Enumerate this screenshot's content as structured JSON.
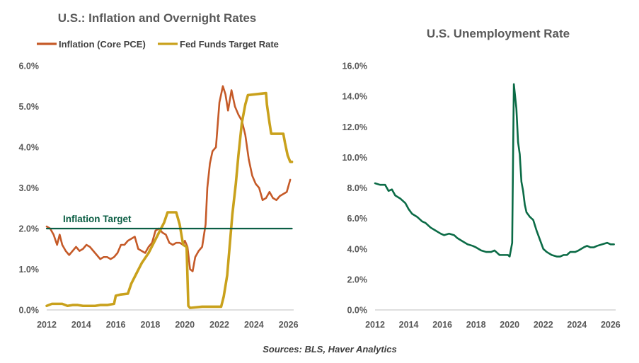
{
  "chart_data": [
    {
      "type": "line",
      "title": "U.S.: Inflation and Overnight Rates",
      "xlim": [
        2012,
        2026.3
      ],
      "ylim": [
        0,
        6
      ],
      "x_ticks": [
        "2012",
        "2014",
        "2016",
        "2018",
        "2020",
        "2022",
        "2024",
        "2026"
      ],
      "y_ticks": [
        "0.0%",
        "1.0%",
        "2.0%",
        "3.0%",
        "4.0%",
        "5.0%",
        "6.0%"
      ],
      "grid": false,
      "legend": "top",
      "annotation": {
        "text": "Inflation Target",
        "y": 2.0
      },
      "series": [
        {
          "name": "Inflation (Core PCE)",
          "color": "#c55a28",
          "points": [
            [
              2012.0,
              2.05
            ],
            [
              2012.2,
              2.0
            ],
            [
              2012.4,
              1.85
            ],
            [
              2012.6,
              1.6
            ],
            [
              2012.75,
              1.85
            ],
            [
              2012.9,
              1.6
            ],
            [
              2013.1,
              1.45
            ],
            [
              2013.3,
              1.35
            ],
            [
              2013.5,
              1.45
            ],
            [
              2013.7,
              1.55
            ],
            [
              2013.9,
              1.45
            ],
            [
              2014.1,
              1.5
            ],
            [
              2014.3,
              1.6
            ],
            [
              2014.5,
              1.55
            ],
            [
              2014.7,
              1.45
            ],
            [
              2014.9,
              1.35
            ],
            [
              2015.1,
              1.25
            ],
            [
              2015.3,
              1.3
            ],
            [
              2015.5,
              1.3
            ],
            [
              2015.7,
              1.25
            ],
            [
              2015.9,
              1.3
            ],
            [
              2016.1,
              1.4
            ],
            [
              2016.3,
              1.6
            ],
            [
              2016.5,
              1.6
            ],
            [
              2016.7,
              1.7
            ],
            [
              2016.9,
              1.75
            ],
            [
              2017.1,
              1.8
            ],
            [
              2017.3,
              1.5
            ],
            [
              2017.5,
              1.45
            ],
            [
              2017.7,
              1.4
            ],
            [
              2017.9,
              1.55
            ],
            [
              2018.1,
              1.65
            ],
            [
              2018.3,
              1.95
            ],
            [
              2018.5,
              2.0
            ],
            [
              2018.7,
              1.9
            ],
            [
              2018.9,
              1.85
            ],
            [
              2019.1,
              1.65
            ],
            [
              2019.3,
              1.6
            ],
            [
              2019.5,
              1.65
            ],
            [
              2019.7,
              1.65
            ],
            [
              2019.9,
              1.6
            ],
            [
              2020.0,
              1.7
            ],
            [
              2020.15,
              1.55
            ],
            [
              2020.3,
              1.0
            ],
            [
              2020.45,
              0.95
            ],
            [
              2020.6,
              1.3
            ],
            [
              2020.8,
              1.45
            ],
            [
              2021.0,
              1.55
            ],
            [
              2021.2,
              2.1
            ],
            [
              2021.3,
              3.0
            ],
            [
              2021.45,
              3.6
            ],
            [
              2021.6,
              3.9
            ],
            [
              2021.8,
              4.0
            ],
            [
              2022.0,
              5.1
            ],
            [
              2022.2,
              5.5
            ],
            [
              2022.35,
              5.3
            ],
            [
              2022.5,
              4.9
            ],
            [
              2022.7,
              5.4
            ],
            [
              2022.9,
              5.0
            ],
            [
              2023.1,
              4.8
            ],
            [
              2023.3,
              4.65
            ],
            [
              2023.5,
              4.3
            ],
            [
              2023.7,
              3.7
            ],
            [
              2023.9,
              3.3
            ],
            [
              2024.1,
              3.1
            ],
            [
              2024.3,
              3.0
            ],
            [
              2024.5,
              2.7
            ],
            [
              2024.7,
              2.75
            ],
            [
              2024.9,
              2.9
            ],
            [
              2025.1,
              2.75
            ],
            [
              2025.3,
              2.7
            ],
            [
              2025.5,
              2.8
            ],
            [
              2025.7,
              2.85
            ],
            [
              2025.9,
              2.9
            ],
            [
              2026.0,
              3.05
            ],
            [
              2026.1,
              3.2
            ]
          ]
        },
        {
          "name": "Fed Funds Target Rate",
          "color": "#c9a11c",
          "points": [
            [
              2012.0,
              0.1
            ],
            [
              2012.3,
              0.15
            ],
            [
              2012.6,
              0.15
            ],
            [
              2012.9,
              0.15
            ],
            [
              2013.2,
              0.1
            ],
            [
              2013.5,
              0.12
            ],
            [
              2013.8,
              0.12
            ],
            [
              2014.1,
              0.1
            ],
            [
              2014.4,
              0.1
            ],
            [
              2014.8,
              0.1
            ],
            [
              2015.1,
              0.12
            ],
            [
              2015.5,
              0.12
            ],
            [
              2015.9,
              0.15
            ],
            [
              2016.0,
              0.35
            ],
            [
              2016.3,
              0.38
            ],
            [
              2016.7,
              0.4
            ],
            [
              2016.9,
              0.65
            ],
            [
              2017.2,
              0.9
            ],
            [
              2017.5,
              1.15
            ],
            [
              2017.9,
              1.4
            ],
            [
              2018.2,
              1.65
            ],
            [
              2018.5,
              1.9
            ],
            [
              2018.8,
              2.15
            ],
            [
              2019.0,
              2.4
            ],
            [
              2019.5,
              2.4
            ],
            [
              2019.7,
              2.1
            ],
            [
              2019.9,
              1.6
            ],
            [
              2020.1,
              1.55
            ],
            [
              2020.2,
              0.1
            ],
            [
              2020.3,
              0.05
            ],
            [
              2021.0,
              0.08
            ],
            [
              2022.1,
              0.08
            ],
            [
              2022.25,
              0.33
            ],
            [
              2022.45,
              0.85
            ],
            [
              2022.6,
              1.6
            ],
            [
              2022.75,
              2.35
            ],
            [
              2022.95,
              3.1
            ],
            [
              2023.1,
              3.8
            ],
            [
              2023.3,
              4.6
            ],
            [
              2023.5,
              5.05
            ],
            [
              2023.65,
              5.28
            ],
            [
              2024.7,
              5.33
            ],
            [
              2024.75,
              5.05
            ],
            [
              2024.9,
              4.6
            ],
            [
              2025.0,
              4.33
            ],
            [
              2025.7,
              4.33
            ],
            [
              2025.8,
              4.1
            ],
            [
              2025.95,
              3.8
            ],
            [
              2026.1,
              3.64
            ],
            [
              2026.2,
              3.64
            ]
          ]
        },
        {
          "name": "Inflation Target",
          "color": "#0b5e44",
          "points": [
            [
              2012.0,
              2.0
            ],
            [
              2026.2,
              2.0
            ]
          ]
        }
      ]
    },
    {
      "type": "line",
      "title": "U.S. Unemployment Rate",
      "xlim": [
        2012,
        2026.3
      ],
      "ylim": [
        0,
        16
      ],
      "x_ticks": [
        "2012",
        "2014",
        "2016",
        "2018",
        "2020",
        "2022",
        "2024",
        "2026"
      ],
      "y_ticks": [
        "0.0%",
        "2.0%",
        "4.0%",
        "6.0%",
        "8.0%",
        "10.0%",
        "12.0%",
        "14.0%",
        "16.0%"
      ],
      "grid": false,
      "series": [
        {
          "name": "",
          "color": "#0b6b46",
          "points": [
            [
              2012.0,
              8.3
            ],
            [
              2012.3,
              8.2
            ],
            [
              2012.6,
              8.2
            ],
            [
              2012.8,
              7.8
            ],
            [
              2013.0,
              7.9
            ],
            [
              2013.2,
              7.5
            ],
            [
              2013.5,
              7.3
            ],
            [
              2013.8,
              7.0
            ],
            [
              2014.0,
              6.6
            ],
            [
              2014.2,
              6.3
            ],
            [
              2014.5,
              6.1
            ],
            [
              2014.8,
              5.8
            ],
            [
              2015.0,
              5.7
            ],
            [
              2015.3,
              5.4
            ],
            [
              2015.6,
              5.2
            ],
            [
              2015.9,
              5.0
            ],
            [
              2016.1,
              4.9
            ],
            [
              2016.4,
              5.0
            ],
            [
              2016.7,
              4.9
            ],
            [
              2016.9,
              4.7
            ],
            [
              2017.2,
              4.5
            ],
            [
              2017.5,
              4.3
            ],
            [
              2017.8,
              4.2
            ],
            [
              2018.0,
              4.1
            ],
            [
              2018.3,
              3.9
            ],
            [
              2018.6,
              3.8
            ],
            [
              2018.9,
              3.8
            ],
            [
              2019.1,
              3.9
            ],
            [
              2019.4,
              3.6
            ],
            [
              2019.7,
              3.6
            ],
            [
              2019.9,
              3.6
            ],
            [
              2020.0,
              3.5
            ],
            [
              2020.15,
              4.4
            ],
            [
              2020.25,
              14.8
            ],
            [
              2020.4,
              13.2
            ],
            [
              2020.5,
              11.0
            ],
            [
              2020.6,
              10.2
            ],
            [
              2020.7,
              8.4
            ],
            [
              2020.8,
              7.8
            ],
            [
              2020.9,
              6.9
            ],
            [
              2021.0,
              6.4
            ],
            [
              2021.2,
              6.1
            ],
            [
              2021.4,
              5.9
            ],
            [
              2021.6,
              5.2
            ],
            [
              2021.8,
              4.6
            ],
            [
              2022.0,
              4.0
            ],
            [
              2022.2,
              3.8
            ],
            [
              2022.5,
              3.6
            ],
            [
              2022.8,
              3.5
            ],
            [
              2023.0,
              3.5
            ],
            [
              2023.2,
              3.6
            ],
            [
              2023.4,
              3.6
            ],
            [
              2023.6,
              3.8
            ],
            [
              2023.9,
              3.8
            ],
            [
              2024.1,
              3.9
            ],
            [
              2024.4,
              4.1
            ],
            [
              2024.6,
              4.2
            ],
            [
              2024.8,
              4.1
            ],
            [
              2025.0,
              4.1
            ],
            [
              2025.2,
              4.2
            ],
            [
              2025.5,
              4.3
            ],
            [
              2025.8,
              4.4
            ],
            [
              2026.0,
              4.3
            ],
            [
              2026.2,
              4.3
            ]
          ]
        }
      ]
    }
  ],
  "source": "Sources: BLS, Haver Analytics"
}
